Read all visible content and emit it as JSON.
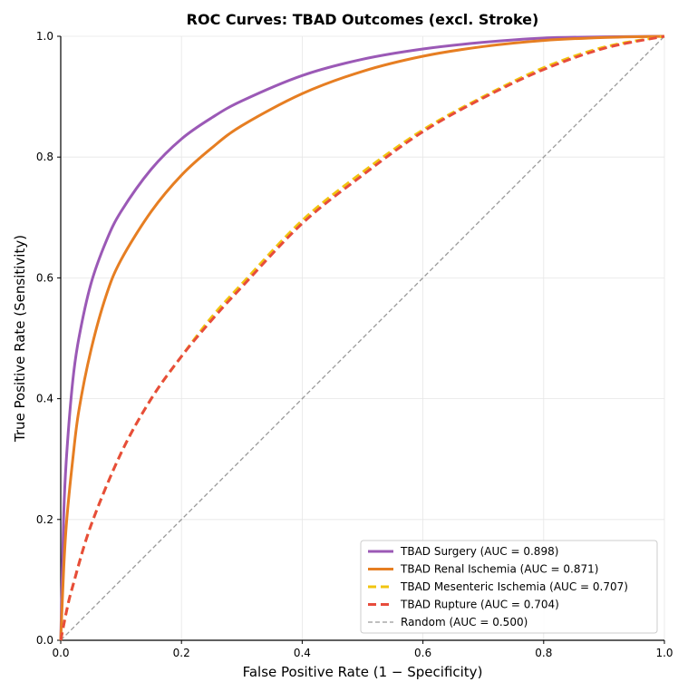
{
  "chart_data": {
    "type": "line",
    "title": "ROC Curves: TBAD Outcomes (excl. Stroke)",
    "xlabel": "False Positive Rate (1 − Specificity)",
    "ylabel": "True Positive Rate (Sensitivity)",
    "xlim": [
      0.0,
      1.0
    ],
    "ylim": [
      0.0,
      1.0
    ],
    "xticks": [
      "0.0",
      "0.2",
      "0.4",
      "0.6",
      "0.8",
      "1.0"
    ],
    "yticks": [
      "0.0",
      "0.2",
      "0.4",
      "0.6",
      "0.8",
      "1.0"
    ],
    "grid": true,
    "legend_position": "lower-right",
    "series": [
      {
        "name": "TBAD Surgery (AUC = 0.898)",
        "color": "#9b59b6",
        "style": "solid",
        "x": [
          0.0,
          0.005,
          0.01,
          0.02,
          0.03,
          0.05,
          0.075,
          0.1,
          0.15,
          0.2,
          0.25,
          0.3,
          0.4,
          0.5,
          0.6,
          0.7,
          0.8,
          0.9,
          1.0
        ],
        "y": [
          0.0,
          0.21,
          0.31,
          0.43,
          0.5,
          0.59,
          0.66,
          0.71,
          0.78,
          0.83,
          0.865,
          0.893,
          0.935,
          0.962,
          0.979,
          0.99,
          0.997,
          0.999,
          1.0
        ]
      },
      {
        "name": "TBAD Renal Ischemia (AUC = 0.871)",
        "color": "#e67e22",
        "style": "solid",
        "x": [
          0.0,
          0.005,
          0.01,
          0.02,
          0.03,
          0.05,
          0.075,
          0.1,
          0.15,
          0.2,
          0.25,
          0.3,
          0.4,
          0.5,
          0.6,
          0.7,
          0.8,
          0.9,
          1.0
        ],
        "y": [
          0.0,
          0.12,
          0.2,
          0.3,
          0.38,
          0.48,
          0.57,
          0.63,
          0.71,
          0.77,
          0.815,
          0.852,
          0.905,
          0.942,
          0.967,
          0.983,
          0.993,
          0.998,
          1.0
        ]
      },
      {
        "name": "TBAD Mesenteric Ischemia (AUC = 0.707)",
        "color": "#f1c40f",
        "style": "dashed",
        "x": [
          0.0,
          0.01,
          0.02,
          0.05,
          0.1,
          0.15,
          0.2,
          0.25,
          0.3,
          0.4,
          0.5,
          0.6,
          0.7,
          0.8,
          0.9,
          1.0
        ],
        "y": [
          0.0,
          0.05,
          0.09,
          0.19,
          0.31,
          0.4,
          0.47,
          0.535,
          0.59,
          0.695,
          0.775,
          0.845,
          0.9,
          0.948,
          0.982,
          1.0
        ]
      },
      {
        "name": "TBAD Rupture (AUC = 0.704)",
        "color": "#e74c3c",
        "style": "dashed",
        "x": [
          0.0,
          0.01,
          0.02,
          0.05,
          0.1,
          0.15,
          0.2,
          0.25,
          0.3,
          0.4,
          0.5,
          0.6,
          0.7,
          0.8,
          0.9,
          1.0
        ],
        "y": [
          0.0,
          0.05,
          0.09,
          0.19,
          0.31,
          0.4,
          0.47,
          0.53,
          0.585,
          0.69,
          0.77,
          0.842,
          0.898,
          0.945,
          0.98,
          1.0
        ]
      },
      {
        "name": "Random (AUC = 0.500)",
        "color": "#999999",
        "style": "dashed-thin",
        "x": [
          0.0,
          1.0
        ],
        "y": [
          0.0,
          1.0
        ]
      }
    ]
  }
}
